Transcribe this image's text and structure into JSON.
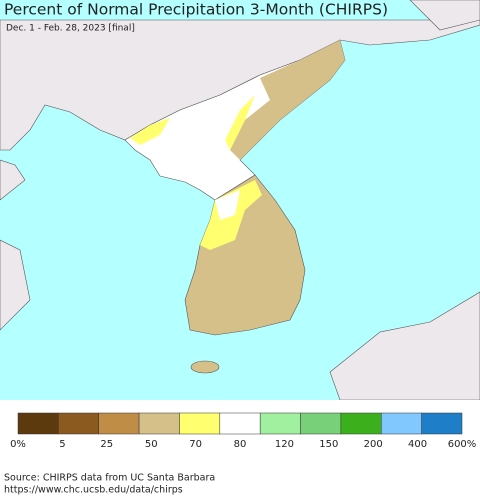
{
  "header": {
    "title": "Percent of Normal Precipitation 3-Month (CHIRPS)",
    "subtitle": "Dec. 1 - Feb. 28, 2023 [final]"
  },
  "legend": {
    "colors": [
      "#5c3a0e",
      "#8b5a1f",
      "#bf8d45",
      "#d6c08a",
      "#ffff70",
      "#ffffff",
      "#a0f0a0",
      "#78d078",
      "#3cb01c",
      "#80c8ff",
      "#1e7fc8"
    ],
    "labels": [
      "0%",
      "5",
      "25",
      "50",
      "70",
      "80",
      "120",
      "150",
      "200",
      "400",
      "600%"
    ]
  },
  "source": [
    "Source: CHIRPS data from UC Santa Barbara",
    "https://www.chc.ucsb.edu/data/chirps"
  ]
}
